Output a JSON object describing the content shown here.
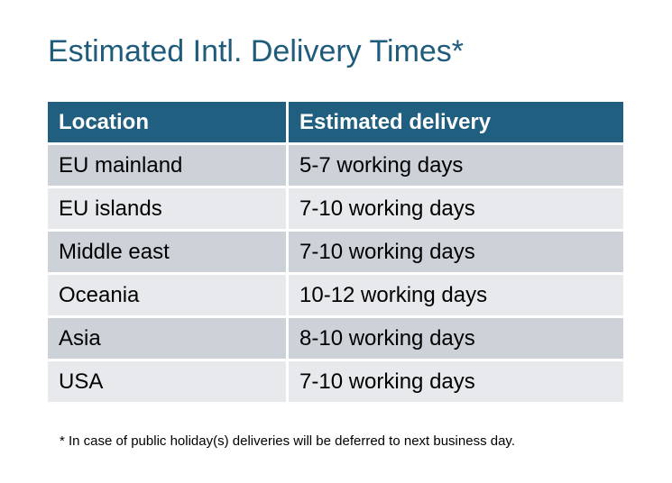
{
  "title": "Estimated Intl. Delivery Times*",
  "table": {
    "headers": [
      "Location",
      "Estimated delivery"
    ],
    "rows": [
      [
        "EU mainland",
        "5-7 working days"
      ],
      [
        "EU islands",
        "7-10 working days"
      ],
      [
        "Middle east",
        "7-10 working days"
      ],
      [
        "Oceania",
        "10-12 working days"
      ],
      [
        "Asia",
        "8-10 working days"
      ],
      [
        "USA",
        "7-10 working days"
      ]
    ]
  },
  "footnote": "* In case of public holiday(s) deliveries will be deferred to next business day.",
  "colors": {
    "header": "#215f80",
    "row_odd": "#cdd2d9",
    "row_even": "#e7e9ec",
    "title": "#1f5b7b"
  }
}
